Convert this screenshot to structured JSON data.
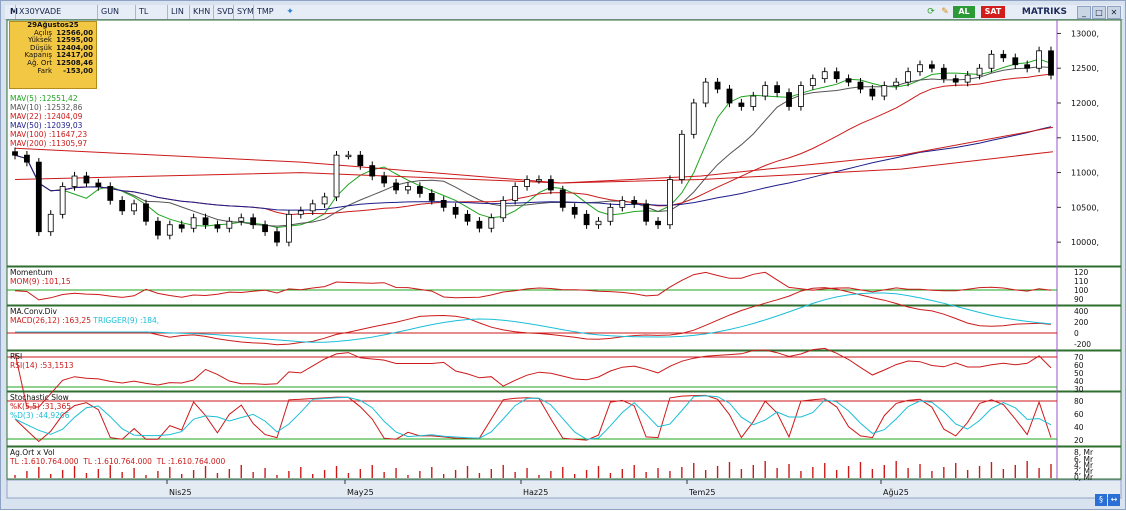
{
  "toolbar": {
    "symbol": "X30YVADE",
    "m_label": "M",
    "period": "GUN",
    "currency": "TL",
    "items": [
      "LIN",
      "KHN",
      "SVD",
      "SYM",
      "TMP"
    ],
    "buy_label": "AL",
    "sell_label": "SAT",
    "brand": "MATRIKS"
  },
  "info": {
    "date": "29Ağustos25",
    "rows": [
      {
        "k": "Açılış",
        "v": "12566,00"
      },
      {
        "k": "Yüksek",
        "v": "12595,00"
      },
      {
        "k": "Düşük",
        "v": "12404,00"
      },
      {
        "k": "Kapanış",
        "v": "12417,00"
      },
      {
        "k": "Ağ. Ort",
        "v": "12508,46"
      },
      {
        "k": "Fark",
        "v": "-153,00"
      }
    ]
  },
  "mavs": [
    {
      "label": "MAV(5)",
      "value": ":12551,42",
      "color": "#1ea51e"
    },
    {
      "label": "MAV(10)",
      "value": ":12532,86",
      "color": "#555555"
    },
    {
      "label": "MAV(22)",
      "value": ":12404,09",
      "color": "#cc1a1a"
    },
    {
      "label": "MAV(50)",
      "value": ":12039,03",
      "color": "#1d1d8c"
    },
    {
      "label": "MAV(100)",
      "value": ":11647,23",
      "color": "#cc1a1a"
    },
    {
      "label": "MAV(200)",
      "value": ":11305,97",
      "color": "#cc1a1a"
    }
  ],
  "price_axis": [
    "13000,",
    "12500,",
    "12000,",
    "11500,",
    "11000,",
    "10500,",
    "10000,"
  ],
  "panels": {
    "momentum": {
      "title": "Momentum",
      "line": "MOM(9)",
      "value": ":101,15",
      "ticks": [
        "120",
        "110",
        "100",
        "90"
      ]
    },
    "macd": {
      "title": "MA.Conv.Div",
      "line": "MACD(26,12)",
      "value": ":163,25",
      "trigger": "TRIGGER(9)",
      "trigger_value": ":184,",
      "ticks": [
        "400",
        "200",
        "0",
        "-200"
      ]
    },
    "rsi": {
      "title": "RSI",
      "line": "RSI(14)",
      "value": ":53,1513",
      "ticks": [
        "70",
        "60",
        "50",
        "40",
        "30"
      ]
    },
    "stoch": {
      "title": "Stochastic Slow",
      "k": "%K(5,5)",
      "k_value": ":31,365",
      "d": "%D(3)",
      "d_value": ":44,9206",
      "ticks": [
        "80",
        "60",
        "40",
        "20"
      ]
    },
    "vol": {
      "title": "Ag.Ort x Vol",
      "l1": "TL",
      "v1": ":1.610.764.000",
      "l2": "TL",
      "v2": ":1.610.764.000",
      "l3": "TL",
      "v3": ":1.610.764.000",
      "ticks": [
        "8, Mr",
        "6, Mr",
        "4, Mr",
        "2, Mr",
        "0, Mr"
      ]
    }
  },
  "months": [
    "Nis25",
    "May25",
    "Haz25",
    "Tem25",
    "Ağu25"
  ],
  "chart_data": {
    "type": "candlestick",
    "title": "X30YVADE",
    "ylim": [
      9700,
      13150
    ],
    "closes": [
      11250,
      11150,
      10150,
      10400,
      10800,
      10950,
      10850,
      10800,
      10600,
      10450,
      10550,
      10300,
      10100,
      10250,
      10200,
      10350,
      10250,
      10200,
      10300,
      10350,
      10250,
      10150,
      10000,
      10400,
      10450,
      10550,
      10650,
      11250,
      11250,
      11100,
      10950,
      10850,
      10750,
      10800,
      10700,
      10600,
      10500,
      10400,
      10300,
      10200,
      10350,
      10600,
      10800,
      10900,
      10900,
      10750,
      10500,
      10400,
      10250,
      10300,
      10500,
      10600,
      10550,
      10300,
      10250,
      10900,
      11550,
      12000,
      12300,
      12200,
      12000,
      11950,
      12100,
      12250,
      12150,
      11950,
      12250,
      12350,
      12450,
      12350,
      12300,
      12200,
      12100,
      12250,
      12300,
      12450,
      12550,
      12500,
      12350,
      12300,
      12400,
      12500,
      12700,
      12650,
      12550,
      12500,
      12750,
      12400
    ]
  }
}
